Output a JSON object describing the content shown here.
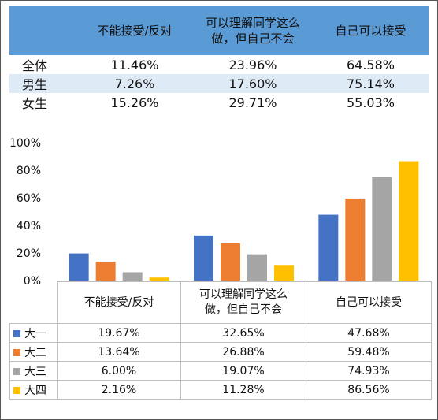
{
  "summary_table": {
    "headers": [
      "不能接受/反对",
      "可以理解同学这么做，但自己不会",
      "自己可以接受"
    ],
    "header_lines": [
      [
        "不能接受/反对"
      ],
      [
        "可以理解同学这么",
        "做，但自己不会"
      ],
      [
        "自己可以接受"
      ]
    ],
    "rows": [
      {
        "label": "全体",
        "values": [
          "11.46%",
          "23.96%",
          "64.58%"
        ]
      },
      {
        "label": "男生",
        "values": [
          "7.26%",
          "17.60%",
          "75.14%"
        ]
      },
      {
        "label": "女生",
        "values": [
          "15.26%",
          "29.71%",
          "55.03%"
        ]
      }
    ],
    "colors": {
      "header_bg": "#5b9bd5",
      "stripe_bg": "#deebf7"
    }
  },
  "chart_data": {
    "type": "bar",
    "categories": [
      "不能接受/反对",
      "可以理解同学这么做，但自己不会",
      "自己可以接受"
    ],
    "category_lines": [
      [
        "不能接受/反对"
      ],
      [
        "可以理解同学这么",
        "做，但自己不会"
      ],
      [
        "自己可以接受"
      ]
    ],
    "series": [
      {
        "name": "大一",
        "color": "#4472c4",
        "values": [
          19.67,
          32.65,
          47.68
        ],
        "labels": [
          "19.67%",
          "32.65%",
          "47.68%"
        ]
      },
      {
        "name": "大二",
        "color": "#ed7d31",
        "values": [
          13.64,
          26.88,
          59.48
        ],
        "labels": [
          "13.64%",
          "26.88%",
          "59.48%"
        ]
      },
      {
        "name": "大三",
        "color": "#a5a5a5",
        "values": [
          6.0,
          19.07,
          74.93
        ],
        "labels": [
          "6.00%",
          "19.07%",
          "74.93%"
        ]
      },
      {
        "name": "大四",
        "color": "#ffc000",
        "values": [
          2.16,
          11.28,
          86.56
        ],
        "labels": [
          "2.16%",
          "11.28%",
          "86.56%"
        ]
      }
    ],
    "ylim": [
      0,
      100
    ],
    "yticks": [
      "0%",
      "20%",
      "40%",
      "60%",
      "80%",
      "100%"
    ],
    "ytick_values": [
      0,
      20,
      40,
      60,
      80,
      100
    ],
    "grid": false,
    "legend": "data-table"
  }
}
